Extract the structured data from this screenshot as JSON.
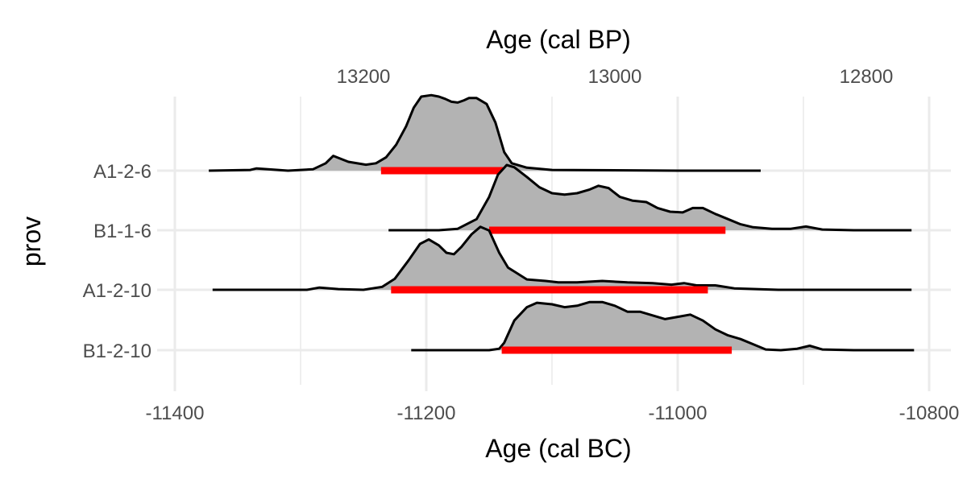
{
  "chart_data": {
    "type": "ridgeline",
    "x_axis_bottom": {
      "title": "Age (cal BC)",
      "range": [
        -11400,
        -10800
      ],
      "ticks": [
        -11400,
        -11200,
        -11000,
        -10800
      ],
      "tick_labels": [
        "-11400",
        "-11200",
        "-11000",
        "-10800"
      ]
    },
    "x_axis_top": {
      "title": "Age (cal BP)",
      "ticks_bp": [
        13200,
        13000,
        12800
      ],
      "tick_labels": [
        "13200",
        "13000",
        "12800"
      ],
      "bp_offset": 1950
    },
    "y_axis": {
      "title": "prov",
      "categories": [
        "A1-2-6",
        "B1-1-6",
        "A1-2-10",
        "B1-2-10"
      ]
    },
    "grid": true,
    "fill_color": "#b3b3b3",
    "line_color": "#000000",
    "interval_color": "#ff0000",
    "series": [
      {
        "name": "A1-2-6",
        "x_range": [
          -11373,
          -10934
        ],
        "interval": [
          -11236,
          -11137
        ],
        "density": [
          [
            -11373,
            0.0
          ],
          [
            -11340,
            0.01
          ],
          [
            -11335,
            0.03
          ],
          [
            -11310,
            0.0
          ],
          [
            -11290,
            0.02
          ],
          [
            -11280,
            0.1
          ],
          [
            -11274,
            0.2
          ],
          [
            -11262,
            0.12
          ],
          [
            -11248,
            0.08
          ],
          [
            -11240,
            0.1
          ],
          [
            -11232,
            0.18
          ],
          [
            -11224,
            0.35
          ],
          [
            -11216,
            0.6
          ],
          [
            -11210,
            0.85
          ],
          [
            -11204,
            1.0
          ],
          [
            -11196,
            1.02
          ],
          [
            -11190,
            1.0
          ],
          [
            -11185,
            0.97
          ],
          [
            -11180,
            0.93
          ],
          [
            -11175,
            0.92
          ],
          [
            -11170,
            0.95
          ],
          [
            -11166,
            0.98
          ],
          [
            -11160,
            0.98
          ],
          [
            -11152,
            0.9
          ],
          [
            -11145,
            0.65
          ],
          [
            -11138,
            0.25
          ],
          [
            -11132,
            0.1
          ],
          [
            -11120,
            0.04
          ],
          [
            -11100,
            0.01
          ],
          [
            -11000,
            0.0
          ],
          [
            -10934,
            0.0
          ]
        ]
      },
      {
        "name": "B1-1-6",
        "x_range": [
          -11230,
          -10814
        ],
        "interval": [
          -11150,
          -10962
        ],
        "density": [
          [
            -11230,
            0.0
          ],
          [
            -11190,
            0.0
          ],
          [
            -11175,
            0.02
          ],
          [
            -11160,
            0.15
          ],
          [
            -11150,
            0.45
          ],
          [
            -11143,
            0.75
          ],
          [
            -11136,
            0.88
          ],
          [
            -11130,
            0.85
          ],
          [
            -11120,
            0.72
          ],
          [
            -11110,
            0.58
          ],
          [
            -11100,
            0.5
          ],
          [
            -11090,
            0.48
          ],
          [
            -11080,
            0.5
          ],
          [
            -11070,
            0.55
          ],
          [
            -11063,
            0.6
          ],
          [
            -11055,
            0.57
          ],
          [
            -11046,
            0.45
          ],
          [
            -11036,
            0.4
          ],
          [
            -11025,
            0.38
          ],
          [
            -11016,
            0.3
          ],
          [
            -11006,
            0.25
          ],
          [
            -10996,
            0.24
          ],
          [
            -10988,
            0.3
          ],
          [
            -10980,
            0.3
          ],
          [
            -10970,
            0.22
          ],
          [
            -10960,
            0.15
          ],
          [
            -10950,
            0.08
          ],
          [
            -10940,
            0.04
          ],
          [
            -10925,
            0.02
          ],
          [
            -10910,
            0.02
          ],
          [
            -10898,
            0.05
          ],
          [
            -10885,
            0.01
          ],
          [
            -10860,
            0.0
          ],
          [
            -10814,
            0.0
          ]
        ]
      },
      {
        "name": "A1-2-10",
        "x_range": [
          -11370,
          -10814
        ],
        "interval": [
          -11228,
          -10976
        ],
        "density": [
          [
            -11370,
            0.0
          ],
          [
            -11295,
            0.0
          ],
          [
            -11285,
            0.03
          ],
          [
            -11270,
            0.01
          ],
          [
            -11250,
            0.0
          ],
          [
            -11235,
            0.04
          ],
          [
            -11225,
            0.15
          ],
          [
            -11214,
            0.4
          ],
          [
            -11205,
            0.62
          ],
          [
            -11198,
            0.68
          ],
          [
            -11190,
            0.6
          ],
          [
            -11184,
            0.5
          ],
          [
            -11178,
            0.48
          ],
          [
            -11172,
            0.58
          ],
          [
            -11164,
            0.75
          ],
          [
            -11157,
            0.85
          ],
          [
            -11150,
            0.8
          ],
          [
            -11142,
            0.5
          ],
          [
            -11135,
            0.3
          ],
          [
            -11120,
            0.14
          ],
          [
            -11105,
            0.12
          ],
          [
            -11095,
            0.1
          ],
          [
            -11080,
            0.1
          ],
          [
            -11060,
            0.12
          ],
          [
            -11040,
            0.1
          ],
          [
            -11020,
            0.09
          ],
          [
            -11005,
            0.07
          ],
          [
            -10995,
            0.09
          ],
          [
            -10985,
            0.06
          ],
          [
            -10970,
            0.06
          ],
          [
            -10955,
            0.02
          ],
          [
            -10920,
            0.0
          ],
          [
            -10814,
            0.0
          ]
        ]
      },
      {
        "name": "B1-2-10",
        "x_range": [
          -11212,
          -10812
        ],
        "interval": [
          -11140,
          -10957
        ],
        "density": [
          [
            -11212,
            0.0
          ],
          [
            -11150,
            0.0
          ],
          [
            -11142,
            0.02
          ],
          [
            -11138,
            0.1
          ],
          [
            -11130,
            0.4
          ],
          [
            -11120,
            0.58
          ],
          [
            -11112,
            0.64
          ],
          [
            -11100,
            0.62
          ],
          [
            -11090,
            0.58
          ],
          [
            -11080,
            0.6
          ],
          [
            -11070,
            0.65
          ],
          [
            -11060,
            0.65
          ],
          [
            -11050,
            0.6
          ],
          [
            -11040,
            0.52
          ],
          [
            -11030,
            0.52
          ],
          [
            -11020,
            0.47
          ],
          [
            -11010,
            0.42
          ],
          [
            -11000,
            0.45
          ],
          [
            -10990,
            0.48
          ],
          [
            -10980,
            0.4
          ],
          [
            -10970,
            0.28
          ],
          [
            -10960,
            0.2
          ],
          [
            -10950,
            0.15
          ],
          [
            -10940,
            0.08
          ],
          [
            -10930,
            0.01
          ],
          [
            -10918,
            0.0
          ],
          [
            -10905,
            0.02
          ],
          [
            -10895,
            0.06
          ],
          [
            -10885,
            0.01
          ],
          [
            -10860,
            0.0
          ],
          [
            -10812,
            0.0
          ]
        ]
      }
    ]
  }
}
